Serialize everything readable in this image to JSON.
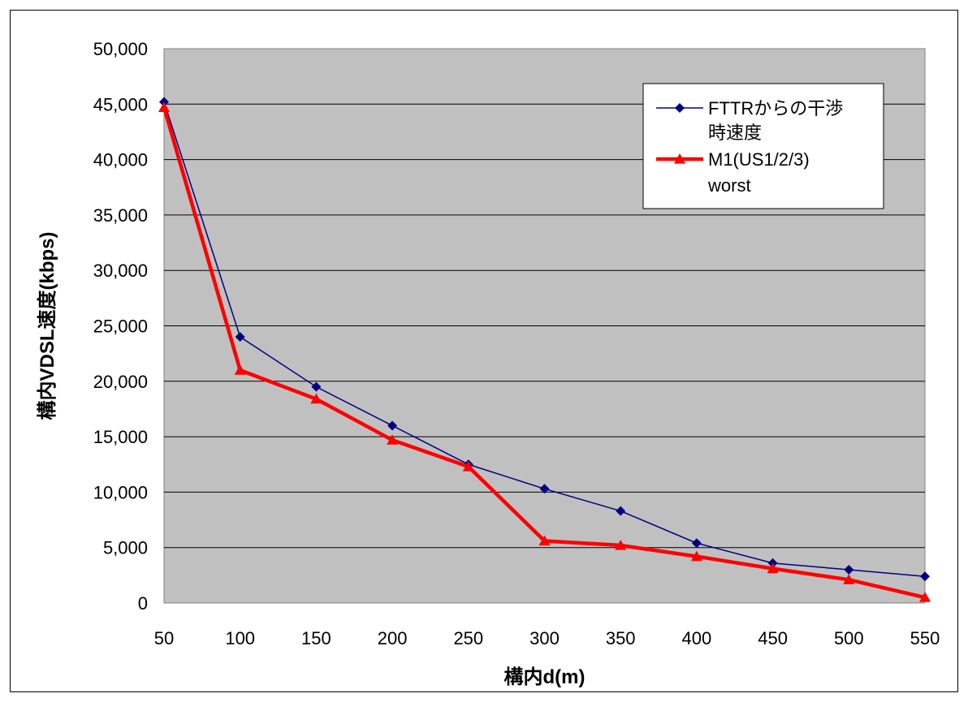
{
  "chart_data": {
    "type": "line",
    "xlabel": "構内d(m)",
    "ylabel": "構内VDSL速度(kbps)",
    "x": [
      50,
      100,
      150,
      200,
      250,
      300,
      350,
      400,
      450,
      500,
      550
    ],
    "x_tick_labels": [
      "50",
      "100",
      "150",
      "200",
      "250",
      "300",
      "350",
      "400",
      "450",
      "500",
      "550"
    ],
    "y_tick_labels": [
      "0",
      "5,000",
      "10,000",
      "15,000",
      "20,000",
      "25,000",
      "30,000",
      "35,000",
      "40,000",
      "45,000",
      "50,000"
    ],
    "ylim": [
      0,
      50000
    ],
    "grid": "horizontal",
    "plot_background": "#c0c0c0",
    "legend_position": "top-right",
    "series": [
      {
        "name_lines": [
          "FTTRからの干渉",
          "時速度"
        ],
        "color": "#000080",
        "marker": "diamond",
        "values": [
          45200,
          24000,
          19500,
          16000,
          12500,
          10300,
          8300,
          5400,
          3600,
          3000,
          2400
        ]
      },
      {
        "name_lines": [
          "M1(US1/2/3)",
          "worst"
        ],
        "color": "#ff0000",
        "marker": "triangle",
        "values": [
          44700,
          21000,
          18400,
          14700,
          12300,
          5600,
          5200,
          4200,
          3100,
          2100,
          500
        ]
      }
    ]
  }
}
